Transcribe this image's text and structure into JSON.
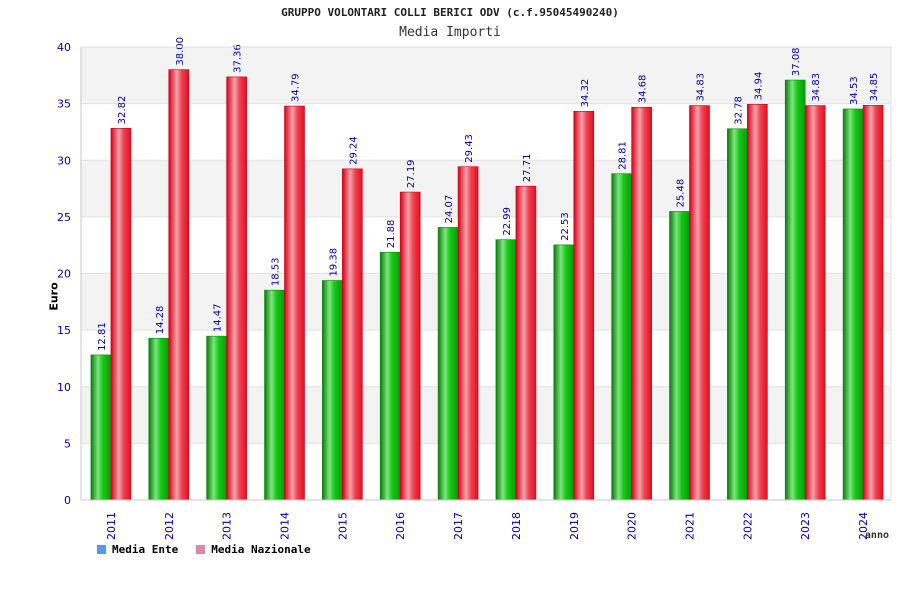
{
  "chart_data": {
    "type": "bar",
    "title": "GRUPPO VOLONTARI COLLI BERICI ODV (c.f.95045490240)",
    "subtitle": "Media Importi",
    "xlabel": "anno",
    "ylabel": "Euro",
    "ylim": [
      0,
      40
    ],
    "yticks": [
      0,
      5,
      10,
      15,
      20,
      25,
      30,
      35,
      40
    ],
    "categories": [
      "2011",
      "2012",
      "2013",
      "2014",
      "2015",
      "2016",
      "2017",
      "2018",
      "2019",
      "2020",
      "2021",
      "2022",
      "2023",
      "2024"
    ],
    "series": [
      {
        "name": "Media Ente",
        "values": [
          12.81,
          14.28,
          14.47,
          18.53,
          19.38,
          21.88,
          24.07,
          22.99,
          22.53,
          28.81,
          25.48,
          32.78,
          37.08,
          34.53
        ]
      },
      {
        "name": "Media Nazionale",
        "values": [
          32.82,
          38.0,
          37.36,
          34.79,
          29.24,
          27.19,
          29.43,
          27.71,
          34.32,
          34.68,
          34.83,
          34.94,
          34.83,
          34.85
        ]
      }
    ],
    "data_labels": [
      [
        "12.81",
        "14.28",
        "14.47",
        "18.53",
        "19.38",
        "21.88",
        "24.07",
        "22.99",
        "22.53",
        "28.81",
        "25.48",
        "32.78",
        "37.08",
        "34.53"
      ],
      [
        "32.82",
        "38.00",
        "37.36",
        "34.79",
        "29.24",
        "27.19",
        "29.43",
        "27.71",
        "34.32",
        "34.68",
        "34.83",
        "34.94",
        "34.83",
        "34.85"
      ]
    ],
    "colors": {
      "ente": "#11c011",
      "nazionale": "#ee1122",
      "legend_ente": "#5599ee",
      "legend_nazionale": "#dd88aa",
      "axis_text": "#0000aa"
    },
    "grid": true,
    "legend_position": "bottom-left"
  }
}
